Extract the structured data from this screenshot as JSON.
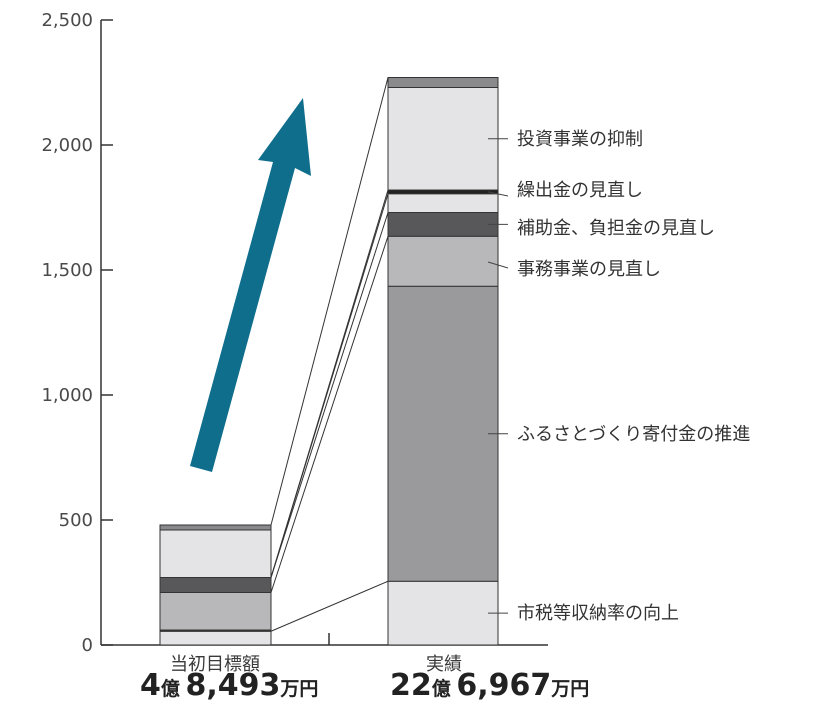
{
  "chart_data": {
    "type": "bar",
    "stacked": true,
    "categories": [
      "当初目標額",
      "実績"
    ],
    "ylim": [
      0,
      2500
    ],
    "yticks": [
      0,
      500,
      1000,
      1500,
      2000,
      2500
    ],
    "ytick_labels": [
      "0",
      "500",
      "1,000",
      "1,500",
      "2,000",
      "2,500"
    ],
    "grid": false,
    "series": [
      {
        "name": "市税等収納率の向上",
        "color": "#e4e4e6",
        "values": [
          55,
          255
        ]
      },
      {
        "name": "ふるさとづくり寄付金の推進",
        "color": "#3a3a3a",
        "values": [
          5,
          1180
        ]
      },
      {
        "name": "事務事業の見直し",
        "color": "#b8b8ba",
        "values": [
          150,
          200
        ]
      },
      {
        "name": "補助金、負担金の見直し",
        "color": "#58585a",
        "values": [
          60,
          95
        ]
      },
      {
        "name": "",
        "color": "#e4e4e6",
        "values": [
          0,
          75
        ]
      },
      {
        "name": "繰出金の見直し",
        "color": "#222222",
        "values": [
          0,
          15
        ]
      },
      {
        "name": "投資事業の抑制",
        "color": "#e4e4e6",
        "values": [
          190,
          410
        ]
      },
      {
        "name": "",
        "color": "#8a8a8c",
        "values": [
          20,
          40
        ]
      }
    ],
    "middle_segment_color_actual": "#9a9a9c",
    "arrow_color": "#0f6e8c",
    "totals": [
      {
        "oku": "4",
        "oku_unit": "億",
        "man": "8,493",
        "man_unit": "万円"
      },
      {
        "oku": "22",
        "oku_unit": "億",
        "man": "6,967",
        "man_unit": "万円"
      }
    ]
  }
}
